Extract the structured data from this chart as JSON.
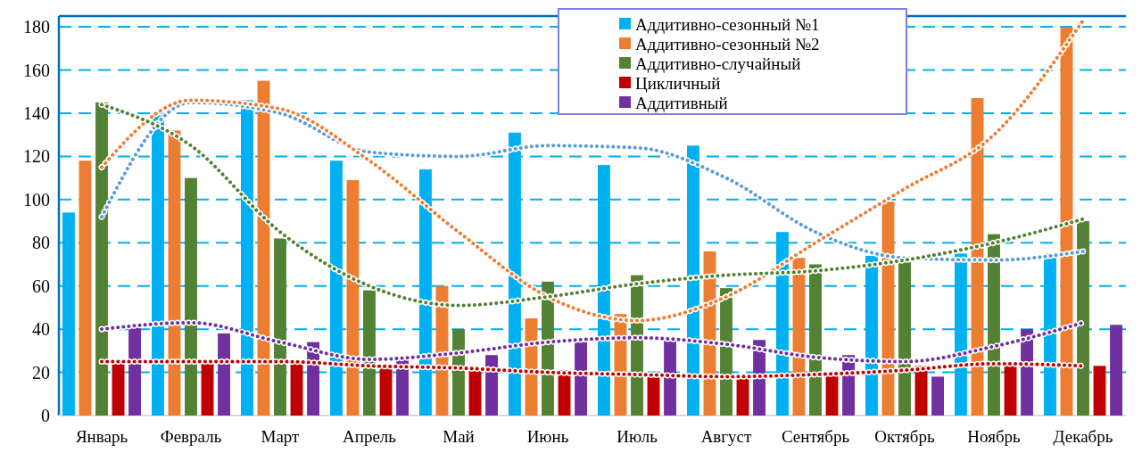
{
  "chart_data": {
    "type": "bar",
    "categories": [
      "Январь",
      "Февраль",
      "Март",
      "Апрель",
      "Май",
      "Июнь",
      "Июль",
      "Август",
      "Сентябрь",
      "Октябрь",
      "Ноябрь",
      "Декабрь"
    ],
    "series": [
      {
        "name": "Аддитивно-сезонный №1",
        "color": "#00b0f0",
        "values": [
          94,
          139,
          146,
          118,
          114,
          131,
          116,
          125,
          85,
          74,
          75,
          75
        ]
      },
      {
        "name": "Аддитивно-сезонный №2",
        "color": "#ed7d31",
        "values": [
          118,
          132,
          155,
          109,
          60,
          45,
          47,
          76,
          73,
          99,
          147,
          180
        ]
      },
      {
        "name": "Аддитивно-случайный",
        "color": "#548235",
        "values": [
          145,
          110,
          82,
          58,
          40,
          62,
          65,
          59,
          70,
          71,
          84,
          90
        ]
      },
      {
        "name": "Цикличный",
        "color": "#c00000",
        "values": [
          25,
          25,
          25,
          23,
          21,
          21,
          19,
          18,
          19,
          23,
          23,
          23
        ]
      },
      {
        "name": "Аддитивный",
        "color": "#7030a0",
        "values": [
          41,
          38,
          34,
          26,
          28,
          34,
          35,
          35,
          28,
          18,
          40,
          42
        ]
      },
      {
        "type": "line",
        "color": "#5b9bd5",
        "line_style": "dotted",
        "values": [
          92,
          145,
          140,
          122,
          120,
          125,
          124,
          110,
          85,
          73,
          72,
          76
        ]
      },
      {
        "type": "line",
        "color": "#ed7d31",
        "line_style": "dotted",
        "values": [
          115,
          146,
          142,
          118,
          85,
          55,
          44,
          55,
          80,
          105,
          130,
          183
        ]
      },
      {
        "type": "line",
        "color": "#548235",
        "line_style": "dotted",
        "values": [
          144,
          125,
          85,
          60,
          51,
          55,
          61,
          65,
          67,
          72,
          80,
          91
        ]
      },
      {
        "type": "line",
        "color": "#c00000",
        "line_style": "dotted",
        "values": [
          25,
          25,
          25,
          23,
          22,
          20,
          19,
          18,
          19,
          21,
          24,
          23
        ]
      },
      {
        "type": "line",
        "color": "#7030a0",
        "line_style": "dotted",
        "values": [
          40,
          43,
          34,
          26,
          29,
          34,
          36,
          33,
          27,
          25,
          32,
          43
        ]
      }
    ],
    "ylim": [
      0,
      185
    ],
    "yticks": [
      0,
      20,
      40,
      60,
      80,
      100,
      120,
      140,
      160,
      180
    ],
    "grid": "y",
    "legend": "top right",
    "marker": "none"
  }
}
